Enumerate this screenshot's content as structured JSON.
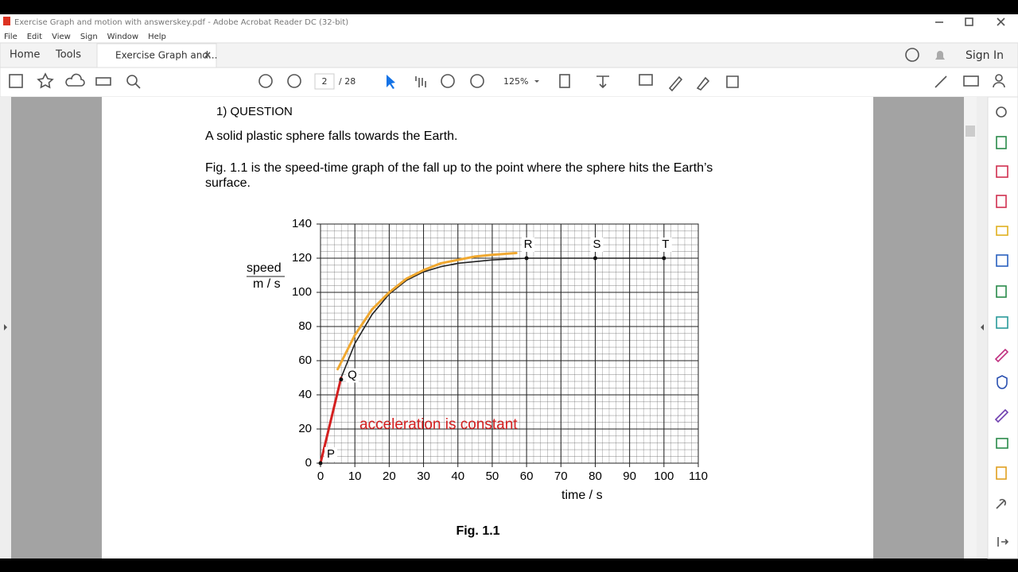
{
  "window": {
    "title": "Exercise Graph and motion with answerskey.pdf - Adobe Acrobat Reader DC (32-bit)"
  },
  "menu": [
    "File",
    "Edit",
    "View",
    "Sign",
    "Window",
    "Help"
  ],
  "tabs": {
    "home": "Home",
    "tools": "Tools",
    "document": "Exercise Graph and..."
  },
  "toolbar": {
    "page": "2",
    "pages": "/ 28",
    "zoom": "125%",
    "sign_in": "Sign In"
  },
  "document": {
    "question": "1)    QUESTION",
    "line1": "A solid plastic sphere falls towards the Earth.",
    "line2": "Fig. 1.1 is the speed-time graph of the fall up to the point where the sphere hits the Earth’s",
    "line3": "surface.",
    "caption": "Fig. 1.1",
    "annotation": "acceleration is constant"
  },
  "chart_data": {
    "type": "line",
    "x_label": "time / s",
    "y_label": "speed",
    "y_label_unit": "m / s",
    "xlim": [
      0,
      110
    ],
    "xticks": [
      0,
      10,
      20,
      30,
      40,
      50,
      60,
      70,
      80,
      90,
      100,
      110
    ],
    "ylim": [
      0,
      140
    ],
    "yticks": [
      0,
      20,
      40,
      60,
      80,
      100,
      120,
      140
    ],
    "grid": true,
    "series": [
      {
        "color": "#222222",
        "x": [
          0,
          6,
          10,
          15,
          20,
          25,
          30,
          35,
          40,
          50,
          60,
          80,
          100
        ],
        "values": [
          0,
          50,
          70,
          87,
          99,
          107,
          112,
          115,
          117,
          119,
          120,
          120,
          120
        ]
      },
      {
        "color": "#f0a830",
        "x": [
          5,
          10,
          15,
          20,
          25,
          30,
          35,
          40,
          45,
          50,
          57
        ],
        "values": [
          55,
          75,
          90,
          100,
          108,
          113,
          117,
          119,
          121,
          122,
          123
        ]
      },
      {
        "color": "#d42020",
        "x": [
          0,
          6
        ],
        "values": [
          0,
          50
        ]
      }
    ],
    "points": [
      {
        "label": "P",
        "x": 0,
        "y": 0
      },
      {
        "label": "Q",
        "x": 6,
        "y": 49
      },
      {
        "label": "R",
        "x": 60,
        "y": 120
      },
      {
        "label": "S",
        "x": 80,
        "y": 120
      },
      {
        "label": "T",
        "x": 100,
        "y": 120
      }
    ]
  }
}
